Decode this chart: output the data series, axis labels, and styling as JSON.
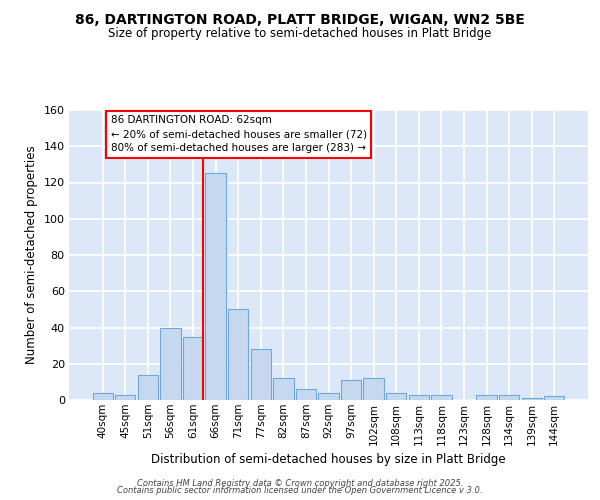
{
  "title1": "86, DARTINGTON ROAD, PLATT BRIDGE, WIGAN, WN2 5BE",
  "title2": "Size of property relative to semi-detached houses in Platt Bridge",
  "xlabel": "Distribution of semi-detached houses by size in Platt Bridge",
  "ylabel": "Number of semi-detached properties",
  "categories": [
    "40sqm",
    "45sqm",
    "51sqm",
    "56sqm",
    "61sqm",
    "66sqm",
    "71sqm",
    "77sqm",
    "82sqm",
    "87sqm",
    "92sqm",
    "97sqm",
    "102sqm",
    "108sqm",
    "113sqm",
    "118sqm",
    "123sqm",
    "128sqm",
    "134sqm",
    "139sqm",
    "144sqm"
  ],
  "values": [
    4,
    3,
    14,
    40,
    35,
    125,
    50,
    28,
    12,
    6,
    4,
    11,
    12,
    4,
    3,
    3,
    0,
    3,
    3,
    1,
    2
  ],
  "bar_color": "#c5d8f0",
  "bar_edge_color": "#6fa8d8",
  "property_line_color": "red",
  "annotation_line1": "86 DARTINGTON ROAD: 62sqm",
  "annotation_line2": "← 20% of semi-detached houses are smaller (72)",
  "annotation_line3": "80% of semi-detached houses are larger (283) →",
  "ylim": [
    0,
    160
  ],
  "yticks": [
    0,
    20,
    40,
    60,
    80,
    100,
    120,
    140,
    160
  ],
  "background_color": "#dce8f8",
  "grid_color": "white",
  "footer_line1": "Contains HM Land Registry data © Crown copyright and database right 2025.",
  "footer_line2": "Contains public sector information licensed under the Open Government Licence v 3.0."
}
